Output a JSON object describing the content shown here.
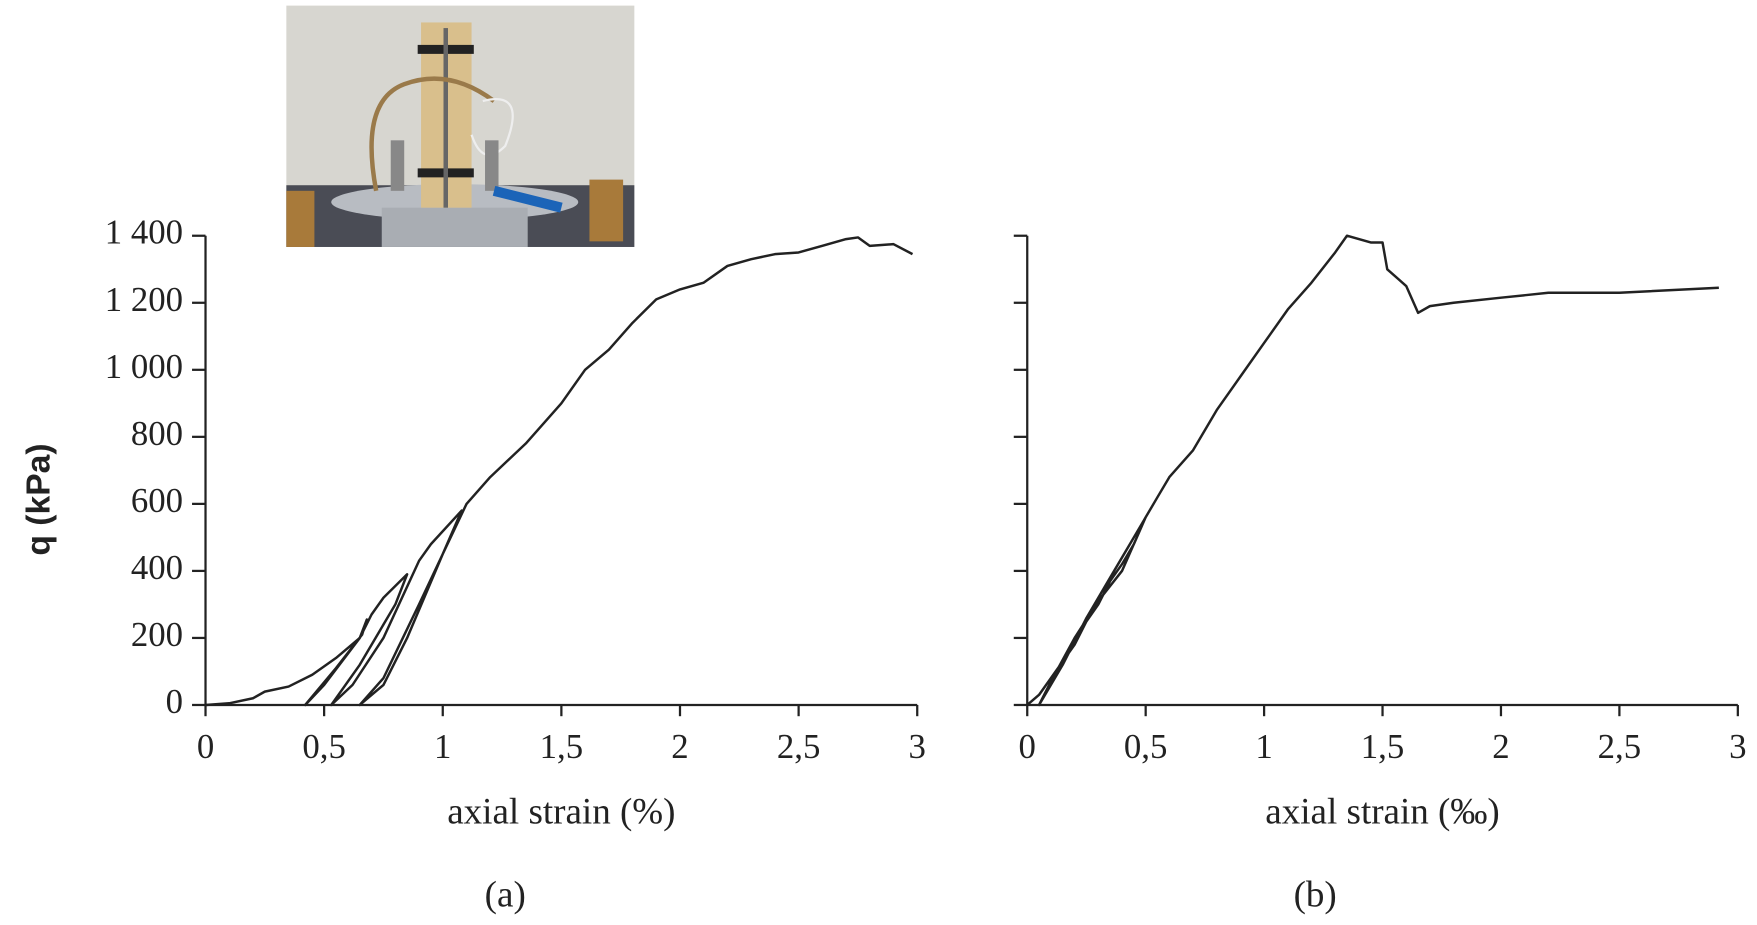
{
  "chart_data": [
    {
      "type": "line",
      "xlabel": "axial strain (%)",
      "ylabel": "q (kPa)",
      "caption": "(a)",
      "xlim": [
        0,
        3
      ],
      "ylim": [
        0,
        1400
      ],
      "xticks": [
        0,
        {
          "value": 0.5,
          "label": "0,5"
        },
        1,
        {
          "value": 1.5,
          "label": "1,5"
        },
        2,
        {
          "value": 2.5,
          "label": "2,5"
        },
        3
      ],
      "yticks": [
        0,
        200,
        400,
        600,
        800,
        {
          "value": 1000,
          "label": "1 000"
        },
        {
          "value": 1200,
          "label": "1 200"
        },
        {
          "value": 1400,
          "label": "1 400"
        }
      ],
      "series": [
        {
          "color": "#222222",
          "x": [
            0,
            0.1,
            0.2,
            0.25,
            0.35,
            0.45,
            0.55,
            0.65,
            0.68,
            0.66,
            0.55,
            0.42,
            0.5,
            0.65,
            0.7,
            0.75,
            0.85,
            0.8,
            0.65,
            0.53,
            0.62,
            0.75,
            0.9,
            0.95,
            1.08,
            1.0,
            0.85,
            0.75,
            0.65,
            0.75,
            0.9,
            1.0,
            1.1,
            1.2,
            1.35,
            1.5,
            1.6,
            1.7,
            1.8,
            1.9,
            2.0,
            2.1,
            2.2,
            2.3,
            2.4,
            2.5,
            2.6,
            2.7,
            2.75,
            2.8,
            2.9,
            2.98
          ],
          "values": [
            0,
            5,
            20,
            40,
            55,
            90,
            140,
            200,
            255,
            210,
            110,
            0,
            60,
            200,
            270,
            320,
            390,
            300,
            120,
            0,
            60,
            200,
            430,
            480,
            580,
            450,
            200,
            60,
            0,
            80,
            300,
            450,
            600,
            680,
            780,
            900,
            1000,
            1060,
            1140,
            1210,
            1240,
            1260,
            1310,
            1330,
            1345,
            1350,
            1370,
            1390,
            1395,
            1370,
            1375,
            1345
          ]
        }
      ]
    },
    {
      "type": "line",
      "xlabel": "axial strain (‰)",
      "caption": "(b)",
      "ytick_labels": false,
      "xlim": [
        0,
        3
      ],
      "ylim": [
        0,
        1400
      ],
      "xticks": [
        0,
        {
          "value": 0.5,
          "label": "0,5"
        },
        1,
        {
          "value": 1.5,
          "label": "1,5"
        },
        2,
        {
          "value": 2.5,
          "label": "2,5"
        },
        3
      ],
      "yticks": [
        0,
        200,
        400,
        600,
        800,
        1000,
        1200,
        1400
      ],
      "series": [
        {
          "color": "#222222",
          "x": [
            0,
            0.05,
            0.1,
            0.15,
            0.2,
            0.25,
            0.3,
            0.35,
            0.4,
            0.45,
            0.5,
            0.45,
            0.35,
            0.25,
            0.15,
            0.05,
            0.1,
            0.2,
            0.3,
            0.4,
            0.5,
            0.55,
            0.6,
            0.7,
            0.8,
            0.9,
            1.0,
            1.1,
            1.2,
            1.3,
            1.35,
            1.45,
            1.5,
            1.52,
            1.6,
            1.65,
            1.7,
            1.8,
            2.0,
            2.2,
            2.5,
            2.92
          ],
          "values": [
            0,
            30,
            80,
            130,
            180,
            250,
            300,
            370,
            420,
            480,
            560,
            500,
            380,
            260,
            120,
            0,
            70,
            200,
            310,
            400,
            560,
            620,
            680,
            760,
            880,
            980,
            1080,
            1180,
            1260,
            1350,
            1400,
            1380,
            1380,
            1300,
            1250,
            1170,
            1190,
            1200,
            1215,
            1230,
            1230,
            1245
          ]
        }
      ]
    }
  ]
}
